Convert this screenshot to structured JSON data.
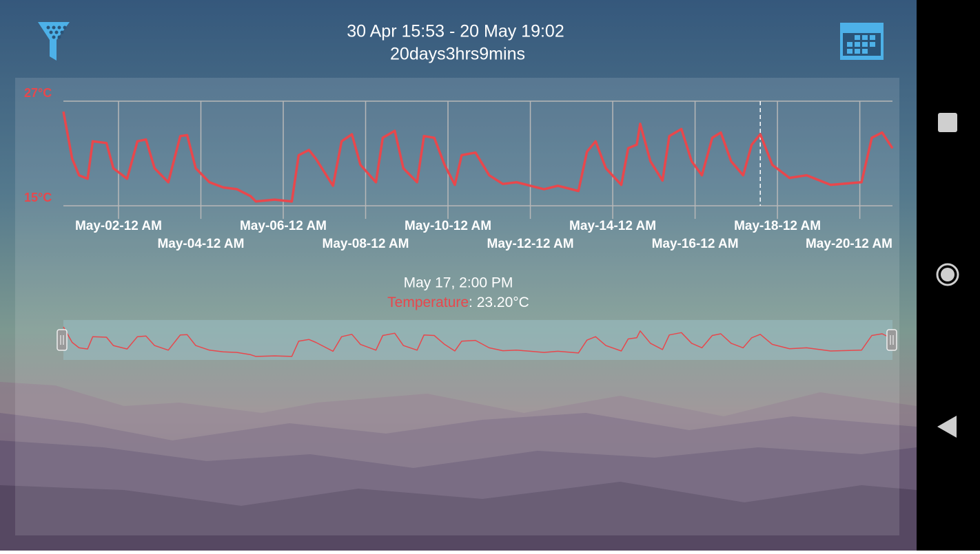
{
  "header": {
    "range": "30 Apr 15:53 - 20 May 19:02",
    "duration": "20days3hrs9mins"
  },
  "chart_data": {
    "type": "line",
    "x": [
      "Apr-30 15:53",
      "Apr-30 21:00",
      "May-01 01:00",
      "May-01 06:00",
      "May-01 09:00",
      "May-01 17:00",
      "May-01 21:00",
      "May-02 05:00",
      "May-02 11:00",
      "May-02 16:00",
      "May-02 21:00",
      "May-03 05:00",
      "May-03 12:00",
      "May-03 16:00",
      "May-03 21:00",
      "May-04 05:00",
      "May-04 13:00",
      "May-04 21:00",
      "May-05 05:00",
      "May-05 08:00",
      "May-05 19:00",
      "May-06 05:00",
      "May-06 09:00",
      "May-06 15:00",
      "May-06 19:00",
      "May-07 05:00",
      "May-07 10:00",
      "May-07 16:00",
      "May-07 21:00",
      "May-08 06:00",
      "May-08 10:00",
      "May-08 17:00",
      "May-08 22:00",
      "May-09 06:00",
      "May-09 10:00",
      "May-09 16:00",
      "May-09 22:00",
      "May-10 04:00",
      "May-10 08:00",
      "May-10 16:00",
      "May-11 00:00",
      "May-11 08:00",
      "May-11 16:00",
      "May-12 00:00",
      "May-12 08:00",
      "May-12 16:00",
      "May-13 04:00",
      "May-13 09:00",
      "May-13 14:00",
      "May-13 20:00",
      "May-14 05:00",
      "May-14 09:00",
      "May-14 14:00",
      "May-14 16:00",
      "May-14 22:00",
      "May-15 05:00",
      "May-15 09:00",
      "May-15 16:00",
      "May-15 22:00",
      "May-16 04:00",
      "May-16 10:00",
      "May-16 15:00",
      "May-16 21:00",
      "May-17 04:00",
      "May-17 09:00",
      "May-17 14:00",
      "May-17 21:00",
      "May-18 07:00",
      "May-18 17:00",
      "May-19 07:00",
      "May-20 01:00",
      "May-20 07:00",
      "May-20 13:00",
      "May-20 19:02"
    ],
    "series": [
      {
        "name": "Temperature",
        "color": "#e8474c",
        "values": [
          25.8,
          20.4,
          18.5,
          18.1,
          22.4,
          22.2,
          19.3,
          18.1,
          22.4,
          22.6,
          19.3,
          17.7,
          23.0,
          23.1,
          19.3,
          17.7,
          17.1,
          16.9,
          16.1,
          15.5,
          15.7,
          15.5,
          20.8,
          21.4,
          20.4,
          17.3,
          22.4,
          23.2,
          19.7,
          17.7,
          22.8,
          23.6,
          19.3,
          17.7,
          23.0,
          22.8,
          19.7,
          17.4,
          20.8,
          21.1,
          18.5,
          17.5,
          17.7,
          17.3,
          16.9,
          17.3,
          16.7,
          21.2,
          22.4,
          19.3,
          17.4,
          21.6,
          22.0,
          24.4,
          20.1,
          17.9,
          23.0,
          23.8,
          20.1,
          18.5,
          22.8,
          23.4,
          20.1,
          18.5,
          22.0,
          23.2,
          19.7,
          18.2,
          18.5,
          17.4,
          17.7,
          22.8,
          23.4,
          21.6
        ]
      }
    ],
    "xlim": [
      "Apr-30 15:53",
      "May-20 19:02"
    ],
    "xticks": [
      {
        "value": "May-02 00:00",
        "label": "May-02-12 AM"
      },
      {
        "value": "May-04 00:00",
        "label": "May-04-12 AM"
      },
      {
        "value": "May-06 00:00",
        "label": "May-06-12 AM"
      },
      {
        "value": "May-08 00:00",
        "label": "May-08-12 AM"
      },
      {
        "value": "May-10 00:00",
        "label": "May-10-12 AM"
      },
      {
        "value": "May-12 00:00",
        "label": "May-12-12 AM"
      },
      {
        "value": "May-14 00:00",
        "label": "May-14-12 AM"
      },
      {
        "value": "May-16 00:00",
        "label": "May-16-12 AM"
      },
      {
        "value": "May-18 00:00",
        "label": "May-18-12 AM"
      },
      {
        "value": "May-20 00:00",
        "label": "May-20-12 AM"
      }
    ],
    "ylim": [
      15,
      27
    ],
    "yticks": [
      {
        "value": 15,
        "label": "15°C"
      },
      {
        "value": 27,
        "label": "27°C"
      }
    ],
    "grid": true
  },
  "tooltip": {
    "title": "May 17, 2:00 PM",
    "name": "Temperature",
    "value": ": 23.20°C"
  }
}
